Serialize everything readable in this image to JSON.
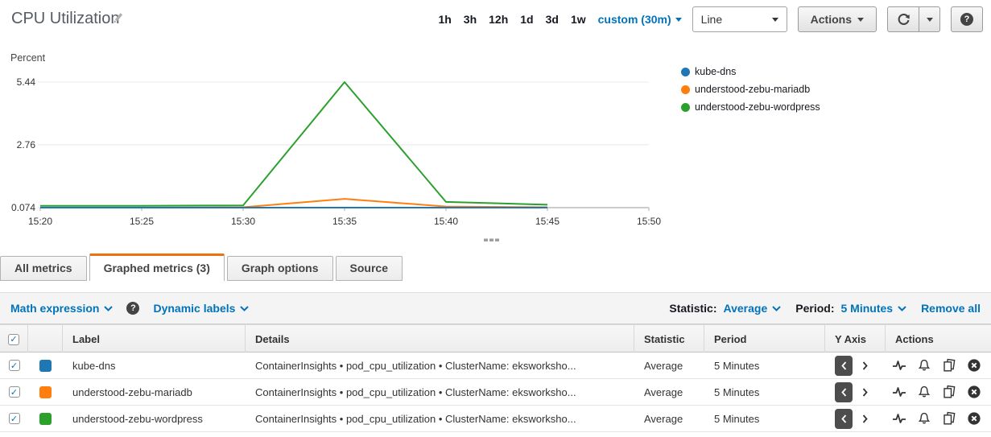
{
  "header": {
    "title": "CPU Utilization",
    "time_ranges": [
      "1h",
      "3h",
      "12h",
      "1d",
      "3d",
      "1w"
    ],
    "custom_range": "custom (30m)",
    "chart_type": "Line",
    "actions": "Actions",
    "help": "?"
  },
  "chart_data": {
    "type": "line",
    "title": "CPU Utilization",
    "ylabel": "Percent",
    "ylim": [
      0.074,
      5.44
    ],
    "yticks": [
      0.074,
      2.76,
      5.44
    ],
    "x_axis_labels": [
      "15:20",
      "15:25",
      "15:30",
      "15:35",
      "15:40",
      "15:45",
      "15:50"
    ],
    "x": [
      "15:20",
      "15:25",
      "15:30",
      "15:35",
      "15:40",
      "15:45"
    ],
    "grid": true,
    "legend_position": "right",
    "series": [
      {
        "name": "kube-dns",
        "color": "#1f77b4",
        "values": [
          0.074,
          0.074,
          0.074,
          0.074,
          0.074,
          0.074
        ]
      },
      {
        "name": "understood-zebu-mariadb",
        "color": "#ff7f0e",
        "values": [
          0.074,
          0.074,
          0.09,
          0.45,
          0.12,
          0.09
        ]
      },
      {
        "name": "understood-zebu-wordpress",
        "color": "#2ca02c",
        "values": [
          0.15,
          0.15,
          0.17,
          5.44,
          0.32,
          0.2
        ]
      }
    ]
  },
  "tabs": {
    "all_metrics": "All metrics",
    "graphed_metrics": "Graphed metrics (3)",
    "graph_options": "Graph options",
    "source": "Source"
  },
  "toolbar": {
    "math_expression": "Math expression",
    "dynamic_labels": "Dynamic labels",
    "statistic_label": "Statistic:",
    "statistic_value": "Average",
    "period_label": "Period:",
    "period_value": "5 Minutes",
    "remove_all": "Remove all",
    "help": "?"
  },
  "table": {
    "headers": {
      "label": "Label",
      "details": "Details",
      "statistic": "Statistic",
      "period": "Period",
      "y_axis": "Y Axis",
      "actions": "Actions"
    },
    "rows": [
      {
        "label": "kube-dns",
        "color": "#1f77b4",
        "details": "ContainerInsights • pod_cpu_utilization • ClusterName: eksworksho...",
        "statistic": "Average",
        "period": "5 Minutes"
      },
      {
        "label": "understood-zebu-mariadb",
        "color": "#ff7f0e",
        "details": "ContainerInsights • pod_cpu_utilization • ClusterName: eksworksho...",
        "statistic": "Average",
        "period": "5 Minutes"
      },
      {
        "label": "understood-zebu-wordpress",
        "color": "#2ca02c",
        "details": "ContainerInsights • pod_cpu_utilization • ClusterName: eksworksho...",
        "statistic": "Average",
        "period": "5 Minutes"
      }
    ]
  }
}
